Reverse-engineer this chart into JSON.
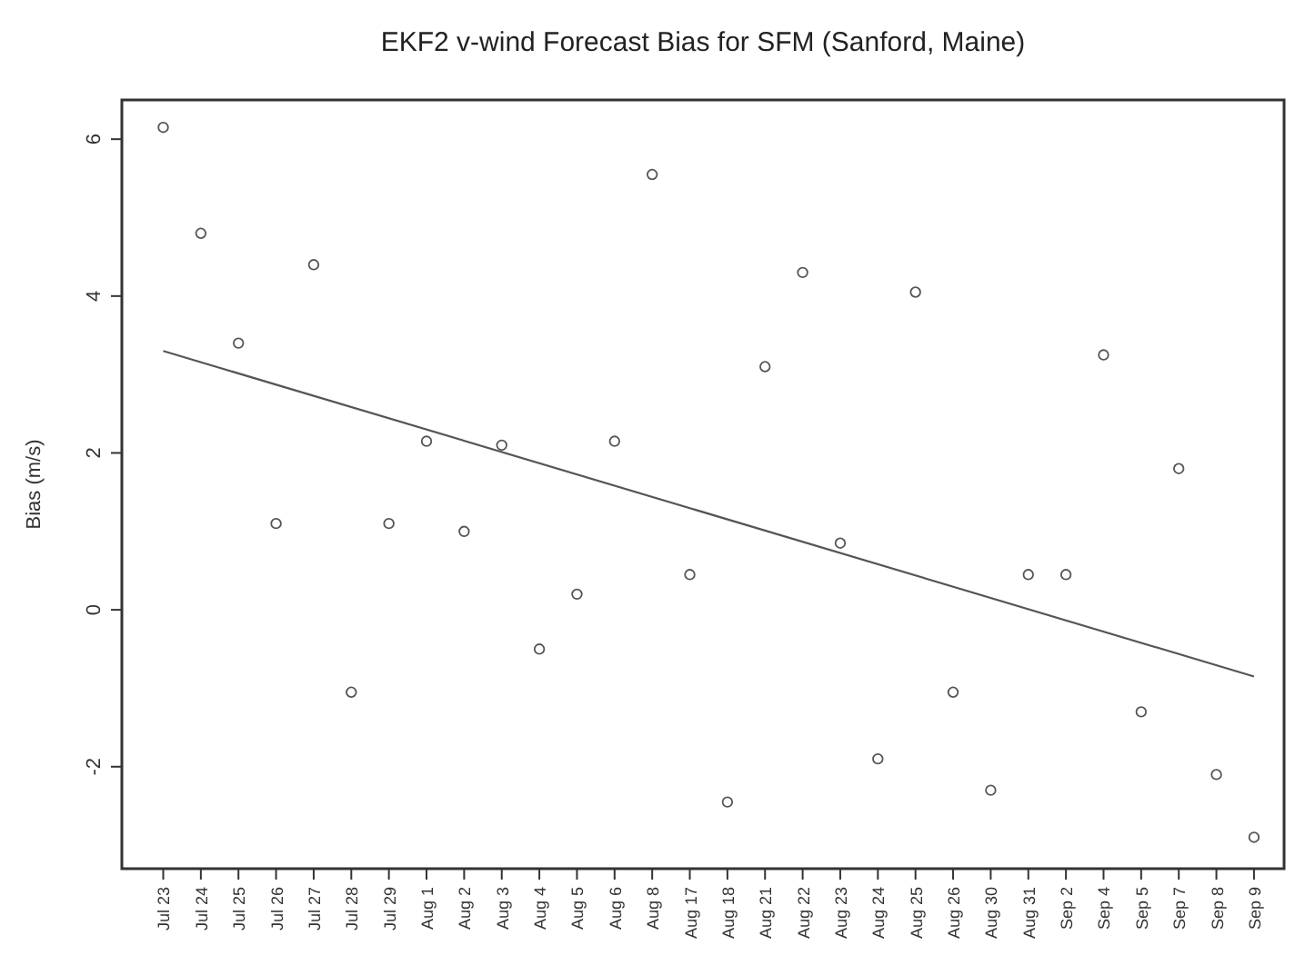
{
  "chart_data": {
    "type": "scatter",
    "title": "EKF2 v-wind Forecast Bias for SFM (Sanford, Maine)",
    "ylabel": "Bias (m/s)",
    "categories": [
      "Jul 23",
      "Jul 24",
      "Jul 25",
      "Jul 26",
      "Jul 27",
      "Jul 28",
      "Jul 29",
      "Aug 1",
      "Aug 2",
      "Aug 3",
      "Aug 4",
      "Aug 5",
      "Aug 6",
      "Aug 8",
      "Aug 17",
      "Aug 18",
      "Aug 21",
      "Aug 22",
      "Aug 23",
      "Aug 24",
      "Aug 25",
      "Aug 26",
      "Aug 30",
      "Aug 31",
      "Sep 2",
      "Sep 4",
      "Sep 5",
      "Sep 7",
      "Sep 8",
      "Sep 9"
    ],
    "series": [
      {
        "color": "#555555",
        "values": [
          6.15,
          4.8,
          3.4,
          1.1,
          4.4,
          -1.05,
          1.1,
          2.15,
          1.0,
          2.1,
          -0.5,
          0.2,
          2.15,
          5.55,
          0.45,
          -2.45,
          3.1,
          4.3,
          0.85,
          -1.9,
          4.05,
          -1.05,
          -2.3,
          0.45,
          0.45,
          3.25,
          -1.3,
          1.8,
          -2.1,
          -2.9
        ]
      },
      {
        "type": "line",
        "marker": "none",
        "color": "#555555",
        "x": [
          "Jul 23",
          "Sep 9"
        ],
        "values": [
          3.3,
          -0.85
        ]
      }
    ],
    "marker": "circle",
    "ylim": [
      -3.3,
      6.5
    ],
    "yticks": [
      -2,
      0,
      2,
      4,
      6
    ],
    "grid": false
  }
}
